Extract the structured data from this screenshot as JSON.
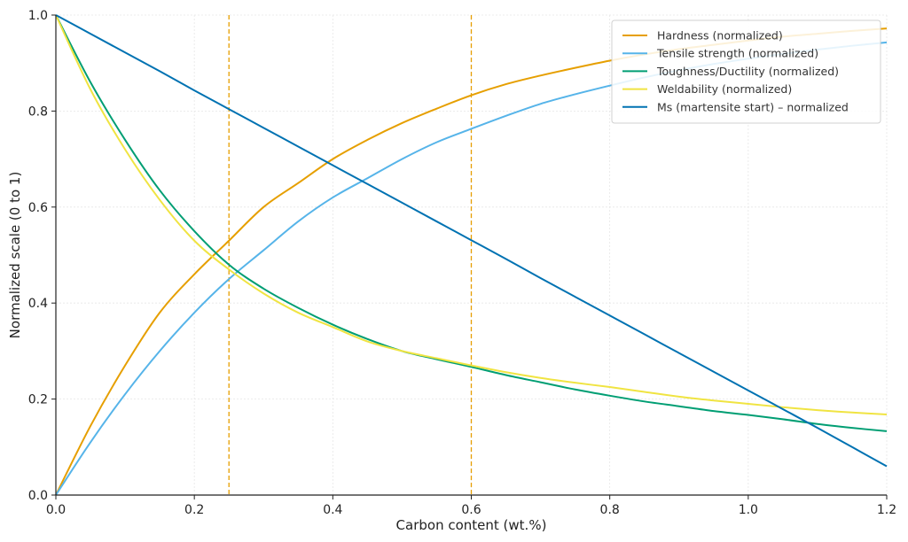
{
  "chart_data": {
    "type": "line",
    "xlabel": "Carbon content (wt.%)",
    "ylabel": "Normalized scale (0 to 1)",
    "xlim": [
      0,
      1.2
    ],
    "ylim": [
      0,
      1.0
    ],
    "xticks": [
      "0.0",
      "0.2",
      "0.4",
      "0.6",
      "0.8",
      "1.0",
      "1.2"
    ],
    "yticks": [
      "0.0",
      "0.2",
      "0.4",
      "0.6",
      "0.8",
      "1.0"
    ],
    "grid": true,
    "legend_position": "top-right",
    "reference_lines_x": [
      0.25,
      0.6
    ],
    "reference_line_color": "#E69F00",
    "x": [
      0.0,
      0.05,
      0.1,
      0.15,
      0.2,
      0.25,
      0.3,
      0.35,
      0.4,
      0.45,
      0.5,
      0.55,
      0.6,
      0.65,
      0.7,
      0.75,
      0.8,
      0.85,
      0.9,
      0.95,
      1.0,
      1.05,
      1.1,
      1.15,
      1.2
    ],
    "series": [
      {
        "name": "Hardness (normalized)",
        "color": "#E69F00",
        "values": [
          0.0,
          0.144,
          0.27,
          0.38,
          0.46,
          0.53,
          0.6,
          0.65,
          0.7,
          0.74,
          0.775,
          0.805,
          0.833,
          0.856,
          0.874,
          0.89,
          0.905,
          0.918,
          0.929,
          0.938,
          0.947,
          0.955,
          0.961,
          0.967,
          0.972
        ]
      },
      {
        "name": "Tensile strength (normalized)",
        "color": "#56B4E9",
        "values": [
          0.0,
          0.11,
          0.21,
          0.3,
          0.38,
          0.45,
          0.51,
          0.57,
          0.62,
          0.66,
          0.7,
          0.735,
          0.763,
          0.79,
          0.815,
          0.835,
          0.853,
          0.87,
          0.885,
          0.898,
          0.909,
          0.919,
          0.928,
          0.936,
          0.943
        ]
      },
      {
        "name": "Toughness/Ductility (normalized)",
        "color": "#009E73",
        "values": [
          1.0,
          0.86,
          0.74,
          0.635,
          0.55,
          0.48,
          0.43,
          0.39,
          0.355,
          0.325,
          0.3,
          0.283,
          0.267,
          0.25,
          0.235,
          0.22,
          0.207,
          0.195,
          0.185,
          0.175,
          0.167,
          0.158,
          0.148,
          0.14,
          0.133
        ]
      },
      {
        "name": "Weldability (normalized)",
        "color": "#F0E442",
        "values": [
          1.0,
          0.845,
          0.72,
          0.615,
          0.53,
          0.47,
          0.42,
          0.38,
          0.35,
          0.32,
          0.3,
          0.285,
          0.27,
          0.256,
          0.244,
          0.234,
          0.225,
          0.215,
          0.205,
          0.197,
          0.19,
          0.183,
          0.177,
          0.172,
          0.168
        ]
      },
      {
        "name": "Ms (martensite start) – normalized",
        "color": "#0072B2",
        "values": [
          1.0,
          0.961,
          0.922,
          0.883,
          0.843,
          0.804,
          0.765,
          0.726,
          0.687,
          0.648,
          0.609,
          0.57,
          0.531,
          0.492,
          0.452,
          0.413,
          0.374,
          0.335,
          0.296,
          0.257,
          0.218,
          0.179,
          0.14,
          0.1,
          0.06
        ]
      }
    ]
  }
}
